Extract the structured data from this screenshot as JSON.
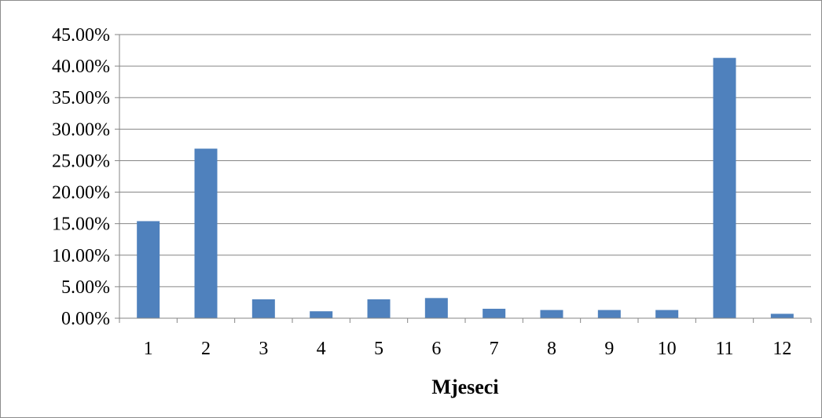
{
  "chart_data": {
    "type": "bar",
    "categories": [
      "1",
      "2",
      "3",
      "4",
      "5",
      "6",
      "7",
      "8",
      "9",
      "10",
      "11",
      "12"
    ],
    "values": [
      15.4,
      26.9,
      3.0,
      1.1,
      3.0,
      3.2,
      1.5,
      1.3,
      1.3,
      1.3,
      41.3,
      0.7
    ],
    "y_tick_labels": [
      "0.00%",
      "5.00%",
      "10.00%",
      "15.00%",
      "20.00%",
      "25.00%",
      "30.00%",
      "35.00%",
      "40.00%",
      "45.00%"
    ],
    "title": "",
    "xlabel": "Mjeseci",
    "ylabel": "",
    "ylim": [
      0,
      45
    ],
    "grid": true,
    "legend": "none",
    "colors": {
      "bar": "#4f81bd",
      "gridline": "#868686",
      "axis": "#868686"
    }
  }
}
